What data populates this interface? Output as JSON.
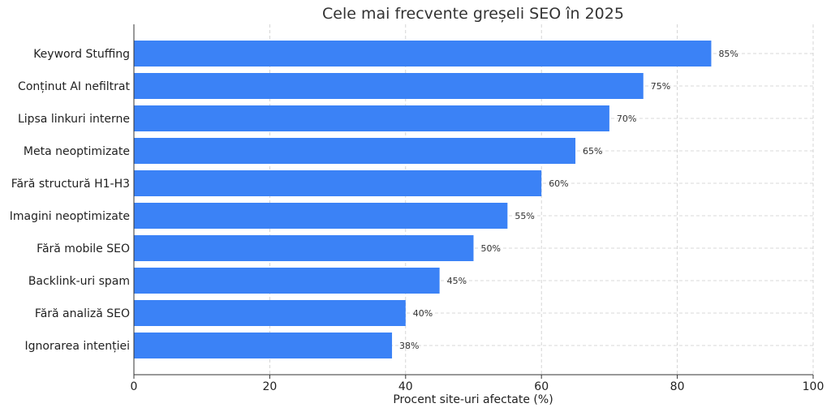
{
  "chart_data": {
    "type": "bar",
    "orientation": "horizontal",
    "title": "Cele mai frecvente greșeli SEO în 2025",
    "xlabel": "Procent site-uri afectate (%)",
    "ylabel": "",
    "xlim": [
      0,
      100
    ],
    "xticks": [
      0,
      20,
      40,
      60,
      80,
      100
    ],
    "grid": true,
    "bar_color": "#3b82f6",
    "categories": [
      "Keyword Stuffing",
      "Conținut AI nefiltrat",
      "Lipsa linkuri interne",
      "Meta neoptimizate",
      "Fără structură H1-H3",
      "Imagini neoptimizate",
      "Fără mobile SEO",
      "Backlink-uri spam",
      "Fără analiză SEO",
      "Ignorarea intenției"
    ],
    "values": [
      85,
      75,
      70,
      65,
      60,
      55,
      50,
      45,
      40,
      38
    ],
    "data_labels": [
      "85%",
      "75%",
      "70%",
      "65%",
      "60%",
      "55%",
      "50%",
      "45%",
      "40%",
      "38%"
    ]
  }
}
